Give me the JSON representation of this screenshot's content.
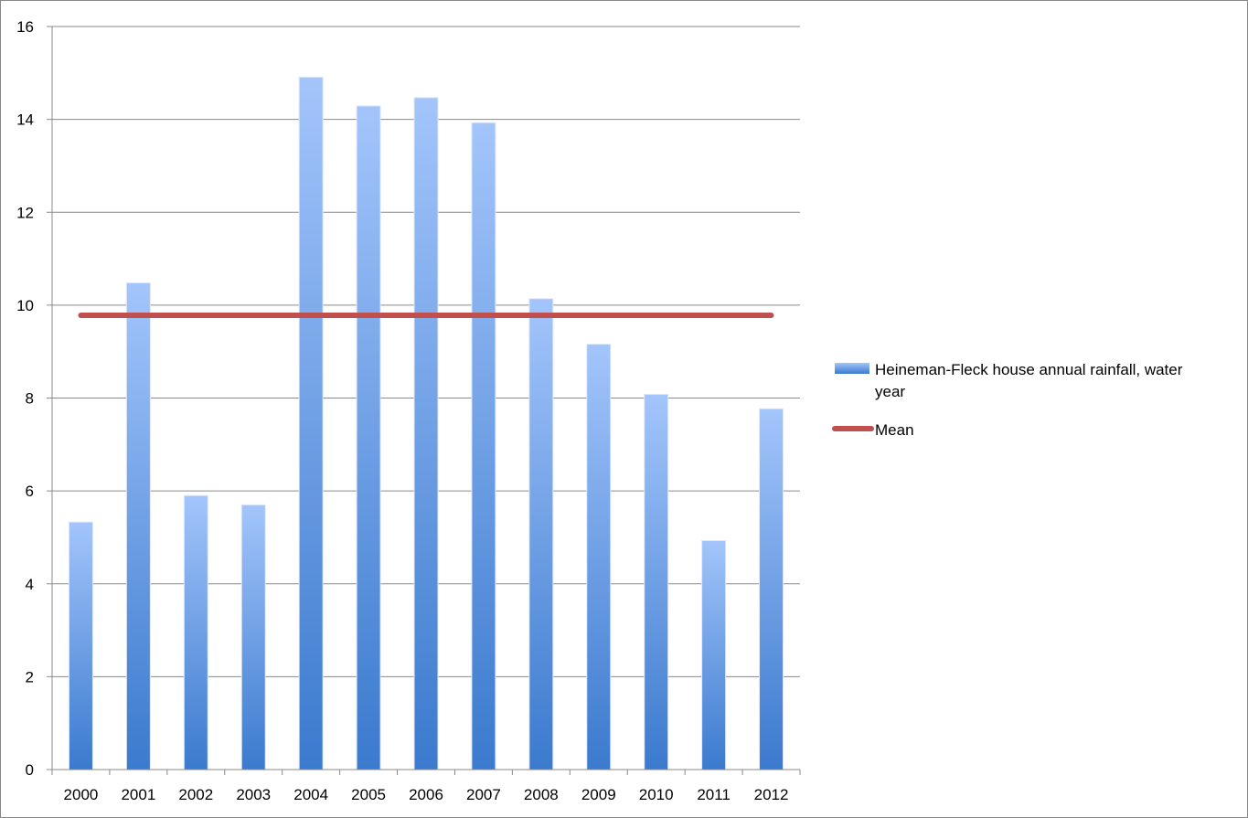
{
  "chart_data": {
    "type": "bar",
    "categories": [
      "2000",
      "2001",
      "2002",
      "2003",
      "2004",
      "2005",
      "2006",
      "2007",
      "2008",
      "2009",
      "2010",
      "2011",
      "2012"
    ],
    "series": [
      {
        "name": "Heineman-Fleck house annual rainfall, water year",
        "type": "bar",
        "values": [
          5.33,
          10.48,
          5.9,
          5.7,
          14.91,
          14.29,
          14.47,
          13.93,
          10.14,
          9.16,
          8.08,
          4.93,
          7.77
        ],
        "color_top": "#a3c5fb",
        "color_bottom": "#3b7ace"
      },
      {
        "name": "Mean",
        "type": "line",
        "value": 9.78,
        "color": "#c0504d"
      }
    ],
    "legend_lines": [
      [
        "Heineman-Fleck house annual rainfall, water",
        "year"
      ],
      [
        "Mean"
      ]
    ],
    "ylim": [
      0,
      16
    ],
    "yticks": [
      "0",
      "2",
      "4",
      "6",
      "8",
      "10",
      "12",
      "14",
      "16"
    ],
    "grid": true,
    "legend_position": "right"
  }
}
